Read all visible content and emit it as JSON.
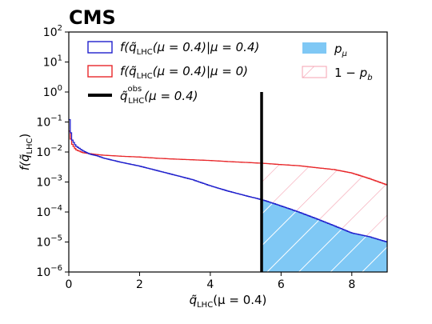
{
  "chart_data": {
    "type": "histogram",
    "brand": "CMS",
    "xlabel": {
      "var": "q̃",
      "sub": "LHC",
      "tail": "(μ = 0.4)"
    },
    "ylabel": {
      "prefix": "f(",
      "var": "q̃",
      "sub": "LHC",
      "suffix": ")"
    },
    "xlim": [
      0,
      9
    ],
    "ylim_log10": [
      -6,
      2
    ],
    "y_scale": "log",
    "x_ticks": [
      0,
      2,
      4,
      6,
      8
    ],
    "y_ticks_exp": [
      -6,
      -5,
      -4,
      -3,
      -2,
      -1,
      0,
      1,
      2
    ],
    "y_tick_base": "10",
    "observed_x": 5.45,
    "legend": {
      "position": "top",
      "items": [
        {
          "key": "sb",
          "kind": "line",
          "color": "#1f1fcc",
          "label": "f(q̃LHC(μ = 0.4)|μ = 0.4)"
        },
        {
          "key": "bg",
          "kind": "line",
          "color": "#e8272a",
          "label": "f(q̃LHC(μ = 0.4)|μ = 0)"
        },
        {
          "key": "obs",
          "kind": "thick",
          "color": "#000000",
          "label": "q̃obsLHC(μ = 0.4)"
        },
        {
          "key": "pmu",
          "kind": "fill",
          "color": "#7fc8f5",
          "label": "pμ"
        },
        {
          "key": "onemb",
          "kind": "hatch",
          "color": "#f4a0b0",
          "label": "1 − pb"
        }
      ]
    },
    "series": [
      {
        "name": "f(q̃LHC(μ = 0.4)|μ = 0.4)",
        "color": "#1f1fcc",
        "points": [
          [
            0.0,
            0.55
          ],
          [
            0.02,
            0.12
          ],
          [
            0.05,
            0.05
          ],
          [
            0.1,
            0.025
          ],
          [
            0.2,
            0.016
          ],
          [
            0.4,
            0.011
          ],
          [
            0.6,
            0.0085
          ],
          [
            0.8,
            0.0075
          ],
          [
            1.0,
            0.0062
          ],
          [
            1.5,
            0.0045
          ],
          [
            2.0,
            0.0034
          ],
          [
            2.5,
            0.0024
          ],
          [
            3.0,
            0.0017
          ],
          [
            3.5,
            0.0012
          ],
          [
            4.0,
            0.00075
          ],
          [
            4.5,
            0.0005
          ],
          [
            5.0,
            0.00035
          ],
          [
            5.5,
            0.00025
          ],
          [
            6.0,
            0.00016
          ],
          [
            6.5,
            0.0001
          ],
          [
            7.0,
            6e-05
          ],
          [
            7.5,
            3.5e-05
          ],
          [
            8.0,
            2e-05
          ],
          [
            8.5,
            1.5e-05
          ],
          [
            9.0,
            1e-05
          ]
        ]
      },
      {
        "name": "f(q̃LHC(μ = 0.4)|μ = 0)",
        "color": "#e8272a",
        "points": [
          [
            0.0,
            0.8
          ],
          [
            0.02,
            0.05
          ],
          [
            0.05,
            0.03
          ],
          [
            0.1,
            0.018
          ],
          [
            0.2,
            0.012
          ],
          [
            0.4,
            0.0095
          ],
          [
            0.6,
            0.0088
          ],
          [
            0.8,
            0.0082
          ],
          [
            1.0,
            0.0078
          ],
          [
            1.5,
            0.0072
          ],
          [
            2.0,
            0.0068
          ],
          [
            2.5,
            0.0062
          ],
          [
            3.0,
            0.0058
          ],
          [
            3.5,
            0.0055
          ],
          [
            4.0,
            0.0052
          ],
          [
            4.5,
            0.0048
          ],
          [
            5.0,
            0.0045
          ],
          [
            5.5,
            0.0042
          ],
          [
            6.0,
            0.0038
          ],
          [
            6.5,
            0.0035
          ],
          [
            7.0,
            0.003
          ],
          [
            7.5,
            0.0026
          ],
          [
            8.0,
            0.002
          ],
          [
            8.5,
            0.0013
          ],
          [
            9.0,
            0.0008
          ]
        ]
      }
    ]
  }
}
